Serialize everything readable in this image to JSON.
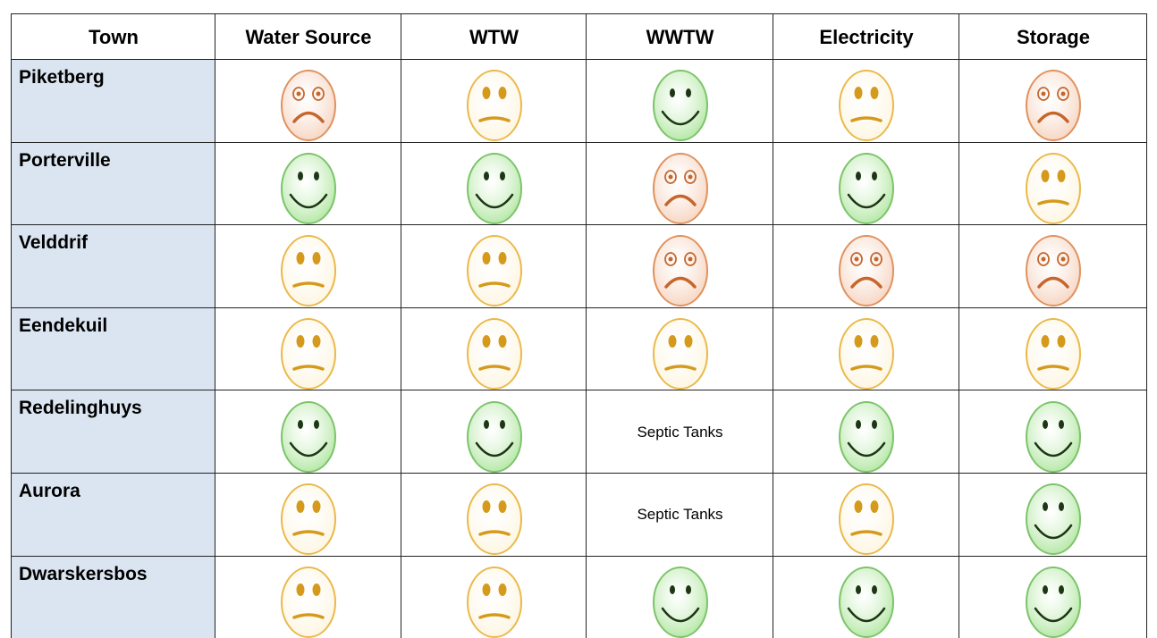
{
  "table": {
    "header": [
      "Town",
      "Water Source",
      "WTW",
      "WWTW",
      "Electricity",
      "Storage"
    ],
    "rows": [
      [
        "Piketberg",
        {
          "mouth": "frown",
          "fill": "#f5cdb6",
          "stroke": "#e0925e",
          "ink": "#c5662c"
        },
        {
          "mouth": "flat",
          "fill": "#fdf4dc",
          "stroke": "#eab94a",
          "ink": "#d59a1c"
        },
        {
          "mouth": "smile",
          "fill": "#a6e394",
          "stroke": "#7cc46a",
          "ink": "#1d3614"
        },
        {
          "mouth": "flat",
          "fill": "#fdf4dc",
          "stroke": "#eab94a",
          "ink": "#d59a1c"
        },
        {
          "mouth": "frown",
          "fill": "#f5cdb6",
          "stroke": "#e0925e",
          "ink": "#c5662c"
        }
      ],
      [
        "Porterville",
        {
          "mouth": "smile",
          "fill": "#a6e394",
          "stroke": "#7cc46a",
          "ink": "#1d3614"
        },
        {
          "mouth": "smile",
          "fill": "#a6e394",
          "stroke": "#7cc46a",
          "ink": "#1d3614"
        },
        {
          "mouth": "frown",
          "fill": "#f5cdb6",
          "stroke": "#e0925e",
          "ink": "#c5662c"
        },
        {
          "mouth": "smile",
          "fill": "#a6e394",
          "stroke": "#7cc46a",
          "ink": "#1d3614"
        },
        {
          "mouth": "flat",
          "fill": "#fdf4dc",
          "stroke": "#eab94a",
          "ink": "#d59a1c"
        }
      ],
      [
        "Velddrif",
        {
          "mouth": "flat",
          "fill": "#fdf4dc",
          "stroke": "#eab94a",
          "ink": "#d59a1c"
        },
        {
          "mouth": "flat",
          "fill": "#fdf4dc",
          "stroke": "#eab94a",
          "ink": "#d59a1c"
        },
        {
          "mouth": "frown",
          "fill": "#f5cdb6",
          "stroke": "#e0925e",
          "ink": "#c5662c"
        },
        {
          "mouth": "frown",
          "fill": "#f5cdb6",
          "stroke": "#e0925e",
          "ink": "#c5662c"
        },
        {
          "mouth": "frown",
          "fill": "#f5cdb6",
          "stroke": "#e0925e",
          "ink": "#c5662c"
        }
      ],
      [
        "Eendekuil",
        {
          "mouth": "flat",
          "fill": "#fdf4dc",
          "stroke": "#eab94a",
          "ink": "#d59a1c"
        },
        {
          "mouth": "flat",
          "fill": "#fdf4dc",
          "stroke": "#eab94a",
          "ink": "#d59a1c"
        },
        {
          "mouth": "flat",
          "fill": "#fdf4dc",
          "stroke": "#eab94a",
          "ink": "#d59a1c"
        },
        {
          "mouth": "flat",
          "fill": "#fdf4dc",
          "stroke": "#eab94a",
          "ink": "#d59a1c"
        },
        {
          "mouth": "flat",
          "fill": "#fdf4dc",
          "stroke": "#eab94a",
          "ink": "#d59a1c"
        }
      ],
      [
        "Redelinghuys",
        {
          "mouth": "smile",
          "fill": "#a6e394",
          "stroke": "#7cc46a",
          "ink": "#1d3614"
        },
        {
          "mouth": "smile",
          "fill": "#a6e394",
          "stroke": "#7cc46a",
          "ink": "#1d3614"
        },
        "Septic Tanks",
        {
          "mouth": "smile",
          "fill": "#a6e394",
          "stroke": "#7cc46a",
          "ink": "#1d3614"
        },
        {
          "mouth": "smile",
          "fill": "#a6e394",
          "stroke": "#7cc46a",
          "ink": "#1d3614"
        }
      ],
      [
        "Aurora",
        {
          "mouth": "flat",
          "fill": "#fdf4dc",
          "stroke": "#eab94a",
          "ink": "#d59a1c"
        },
        {
          "mouth": "flat",
          "fill": "#fdf4dc",
          "stroke": "#eab94a",
          "ink": "#d59a1c"
        },
        "Septic Tanks",
        {
          "mouth": "flat",
          "fill": "#fdf4dc",
          "stroke": "#eab94a",
          "ink": "#d59a1c"
        },
        {
          "mouth": "smile",
          "fill": "#a6e394",
          "stroke": "#7cc46a",
          "ink": "#1d3614"
        }
      ],
      [
        "Dwarskersbos",
        {
          "mouth": "flat",
          "fill": "#fdf4dc",
          "stroke": "#eab94a",
          "ink": "#d59a1c"
        },
        {
          "mouth": "flat",
          "fill": "#fdf4dc",
          "stroke": "#eab94a",
          "ink": "#d59a1c"
        },
        {
          "mouth": "smile",
          "fill": "#a6e394",
          "stroke": "#7cc46a",
          "ink": "#1d3614"
        },
        {
          "mouth": "smile",
          "fill": "#a6e394",
          "stroke": "#7cc46a",
          "ink": "#1d3614"
        },
        {
          "mouth": "smile",
          "fill": "#a6e394",
          "stroke": "#7cc46a",
          "ink": "#1d3614"
        }
      ]
    ]
  }
}
